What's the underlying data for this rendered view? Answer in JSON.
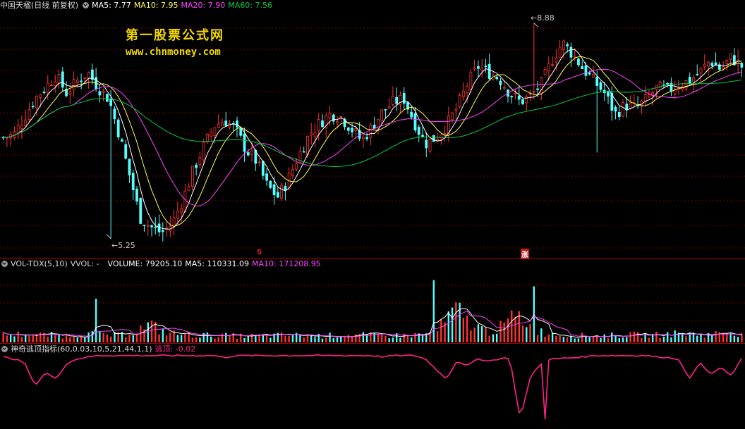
{
  "colors": {
    "background": "#000000",
    "up": "#ff3333",
    "down": "#54ffff",
    "ma5": "#ffffff",
    "ma10": "#ffff55",
    "ma20": "#ff44ff",
    "ma60": "#00cc44",
    "vol_ma5": "#ffffff",
    "vol_ma10": "#ff44ff",
    "indicator": "#ff2288",
    "separator": "#aa0000",
    "grid": "#7a0000"
  },
  "price_header": {
    "title": "中国天楹(日线 前复权)",
    "ma5": "MA5: 7.77",
    "ma10": "MA10: 7.95",
    "ma20": "MA20: 7.90",
    "ma60": "MA60: 7.56"
  },
  "watermark": {
    "line1": "第一股票公式网",
    "line2": "www.chnmoney.com"
  },
  "annotations": {
    "high": "8.88",
    "low": "5.25"
  },
  "markers": {
    "m1": "S",
    "m2": "涨"
  },
  "volume_header": {
    "name": "VOL-TDX(5,10)",
    "vvol": "VVOL: -",
    "volume": "VOLUME: 79205.10",
    "ma5": "MA5: 110331.09",
    "ma10": "MA10: 171208.95"
  },
  "indicator_header": {
    "name": "神奇逃顶指标(60,0.03,10,5,21,44,1,1)",
    "value": "逃顶: -0.02"
  },
  "chart_data": [
    {
      "type": "candlestick",
      "title": "中国天楹(日线 前复权)",
      "series": [
        "MA5",
        "MA10",
        "MA20",
        "MA60"
      ],
      "ylim": [
        5.0,
        9.1
      ],
      "annotations": [
        {
          "label": "8.88",
          "value": 8.88
        },
        {
          "label": "5.25",
          "value": 5.25
        }
      ],
      "close_anchors": [
        6.95,
        7.0,
        7.3,
        7.6,
        7.8,
        8.0,
        7.7,
        7.9,
        8.05,
        7.8,
        7.6,
        7.0,
        6.3,
        5.6,
        5.45,
        5.35,
        5.5,
        5.9,
        6.4,
        6.8,
        7.15,
        7.25,
        7.1,
        6.75,
        6.55,
        6.15,
        5.95,
        6.25,
        6.65,
        7.0,
        7.2,
        7.35,
        7.3,
        7.1,
        6.9,
        7.15,
        7.4,
        7.55,
        7.6,
        7.2,
        6.85,
        6.95,
        7.15,
        7.45,
        7.85,
        8.15,
        8.05,
        7.95,
        7.7,
        7.55,
        7.65,
        7.85,
        8.25,
        8.55,
        8.35,
        8.1,
        7.9,
        7.7,
        7.35,
        7.5,
        7.45,
        7.6,
        7.8,
        7.75,
        7.85,
        7.9,
        8.05,
        8.25,
        8.1,
        8.3,
        8.15
      ]
    },
    {
      "type": "bar",
      "title": "VOL-TDX(5,10)",
      "series": [
        "VOLUME",
        "MA5",
        "MA10"
      ],
      "ylim": [
        0,
        300000
      ],
      "volume_anchors": [
        30,
        32,
        33,
        31,
        30,
        29,
        28,
        30,
        34,
        32,
        30,
        29,
        40,
        55,
        70,
        45,
        36,
        32,
        30,
        29,
        28,
        27,
        26,
        25,
        26,
        27,
        28,
        29,
        28,
        27,
        26,
        27,
        28,
        30,
        29,
        28,
        27,
        27,
        28,
        30,
        33,
        38,
        90,
        130,
        85,
        60,
        45,
        55,
        90,
        105,
        60,
        42,
        36,
        30,
        28,
        27,
        26,
        27,
        28,
        29,
        30,
        29,
        30,
        33,
        36,
        34,
        30,
        32,
        37,
        42,
        38
      ]
    },
    {
      "type": "line",
      "title": "神奇逃顶指标(60,0.03,10,5,21,44,1,1)",
      "series": [
        "逃顶"
      ],
      "ylim": [
        -1.0,
        0.05
      ],
      "indicator_anchors": [
        -0.02,
        -0.05,
        -0.1,
        -0.45,
        -0.25,
        -0.35,
        -0.12,
        -0.05,
        -0.02,
        0,
        0,
        0,
        0,
        0,
        0,
        0,
        0,
        0,
        0,
        0,
        0,
        -0.03,
        0,
        0,
        0,
        0,
        0,
        0,
        0,
        0,
        0,
        0,
        0,
        0,
        0,
        0,
        -0.02,
        0,
        0,
        0,
        -0.05,
        -0.2,
        -0.35,
        -0.08,
        -0.15,
        -0.05,
        -0.08,
        -0.05,
        -0.03,
        -0.95,
        -0.3,
        -0.12,
        -0.05,
        -0.04,
        -0.03,
        -0.02,
        0,
        0,
        0,
        0,
        0,
        0,
        -0.02,
        -0.03,
        -0.05,
        -0.35,
        -0.1,
        -0.28,
        -0.18,
        -0.3,
        -0.05
      ]
    }
  ]
}
